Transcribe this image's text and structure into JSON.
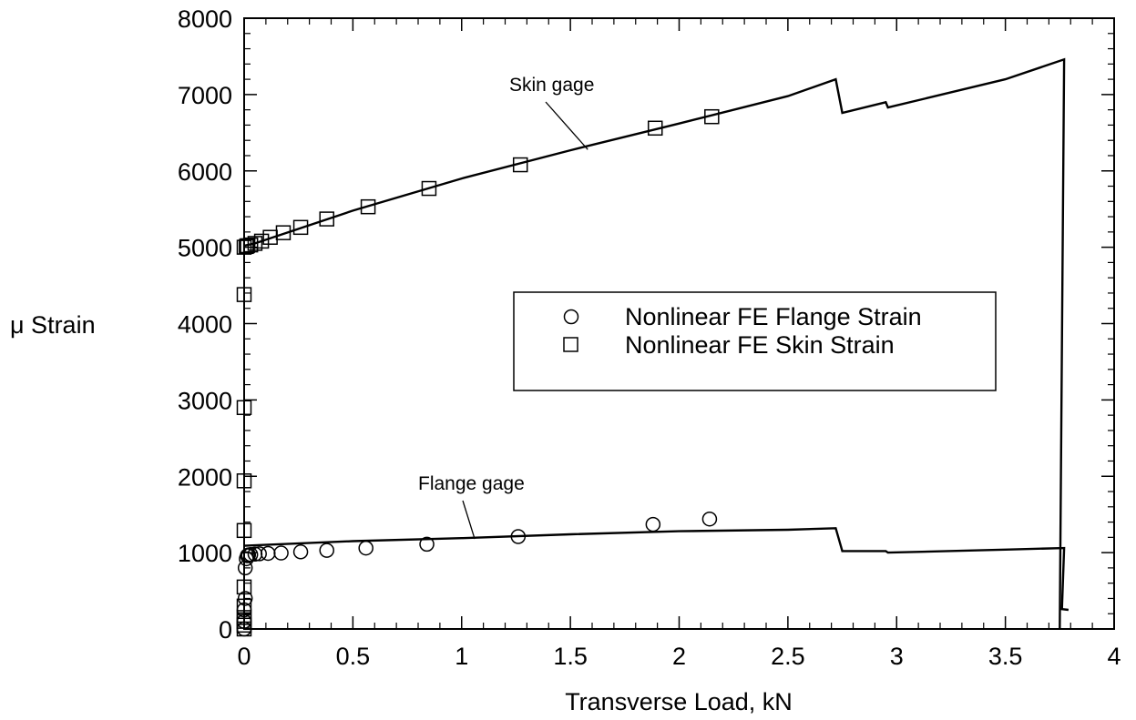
{
  "chart_data": {
    "type": "line",
    "xlabel": "Transverse Load, kN",
    "ylabel": "μ Strain",
    "xlim": [
      0,
      4
    ],
    "ylim": [
      0,
      8000
    ],
    "xticks": [
      0,
      0.5,
      1,
      1.5,
      2,
      2.5,
      3,
      3.5,
      4
    ],
    "yticks": [
      0,
      1000,
      2000,
      3000,
      4000,
      5000,
      6000,
      7000,
      8000
    ],
    "xtick_labels": [
      "0",
      "0.5",
      "1",
      "1.5",
      "2",
      "2.5",
      "3",
      "3.5",
      "4"
    ],
    "ytick_labels": [
      "0",
      "1000",
      "2000",
      "3000",
      "4000",
      "5000",
      "6000",
      "7000",
      "8000"
    ],
    "grid": false,
    "legend_position": "center-right",
    "lines": [
      {
        "label": "Skin gage",
        "points": [
          [
            0,
            5020
          ],
          [
            0.05,
            5050
          ],
          [
            0.5,
            5480
          ],
          [
            1.0,
            5900
          ],
          [
            1.5,
            6270
          ],
          [
            2.0,
            6620
          ],
          [
            2.5,
            6980
          ],
          [
            2.72,
            7200
          ],
          [
            2.75,
            6760
          ],
          [
            2.95,
            6900
          ],
          [
            2.96,
            6830
          ],
          [
            3.5,
            7200
          ],
          [
            3.77,
            7460
          ],
          [
            3.75,
            0
          ]
        ]
      },
      {
        "label": "Flange gage",
        "points": [
          [
            0,
            1090
          ],
          [
            0.5,
            1150
          ],
          [
            1.0,
            1190
          ],
          [
            1.5,
            1240
          ],
          [
            2.0,
            1280
          ],
          [
            2.5,
            1300
          ],
          [
            2.72,
            1320
          ],
          [
            2.75,
            1020
          ],
          [
            2.95,
            1020
          ],
          [
            2.96,
            1000
          ],
          [
            3.5,
            1040
          ],
          [
            3.77,
            1060
          ],
          [
            3.76,
            260
          ],
          [
            3.79,
            250
          ]
        ]
      }
    ],
    "series": [
      {
        "name": "Nonlinear FE Flange Strain",
        "marker": "circle",
        "points": [
          [
            0,
            0
          ],
          [
            0,
            100
          ],
          [
            0,
            250
          ],
          [
            0.005,
            400
          ],
          [
            0.005,
            800
          ],
          [
            0.01,
            920
          ],
          [
            0.015,
            960
          ],
          [
            0.02,
            970
          ],
          [
            0.03,
            975
          ],
          [
            0.05,
            980
          ],
          [
            0.07,
            985
          ],
          [
            0.11,
            990
          ],
          [
            0.17,
            995
          ],
          [
            0.26,
            1010
          ],
          [
            0.38,
            1030
          ],
          [
            0.56,
            1060
          ],
          [
            0.84,
            1110
          ],
          [
            1.26,
            1210
          ],
          [
            1.88,
            1370
          ],
          [
            2.14,
            1440
          ]
        ]
      },
      {
        "name": "Nonlinear FE Skin Strain",
        "marker": "square",
        "points": [
          [
            0,
            0
          ],
          [
            0,
            50
          ],
          [
            0,
            100
          ],
          [
            0,
            150
          ],
          [
            0,
            300
          ],
          [
            0,
            550
          ],
          [
            0,
            1290
          ],
          [
            0,
            1940
          ],
          [
            0,
            2900
          ],
          [
            0,
            4380
          ],
          [
            0,
            5000
          ],
          [
            0.01,
            5010
          ],
          [
            0.015,
            5020
          ],
          [
            0.03,
            5030
          ],
          [
            0.05,
            5050
          ],
          [
            0.08,
            5080
          ],
          [
            0.12,
            5130
          ],
          [
            0.18,
            5190
          ],
          [
            0.26,
            5260
          ],
          [
            0.38,
            5370
          ],
          [
            0.57,
            5530
          ],
          [
            0.85,
            5770
          ],
          [
            1.27,
            6080
          ],
          [
            1.89,
            6560
          ],
          [
            2.15,
            6710
          ]
        ]
      }
    ],
    "annotations": [
      {
        "text": "Skin gage",
        "target": [
          1.58,
          6280
        ]
      },
      {
        "text": "Flange gage",
        "target": [
          1.06,
          1180
        ]
      }
    ]
  }
}
